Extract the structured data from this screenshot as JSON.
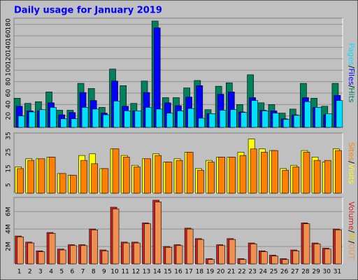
{
  "chart_data": [
    {
      "type": "bar",
      "title": "Daily usage for January 2019",
      "categories": [
        "1",
        "2",
        "3",
        "4",
        "5",
        "6",
        "7",
        "8",
        "9",
        "10",
        "11",
        "12",
        "13",
        "14",
        "15",
        "16",
        "17",
        "18",
        "19",
        "20",
        "21",
        "22",
        "23",
        "24",
        "25",
        "26",
        "27",
        "28",
        "29",
        "30",
        "31"
      ],
      "category_colors": [
        "#000000",
        "#000000",
        "#000000",
        "#000000",
        "#00805c",
        "#00805c",
        "#000000",
        "#000000",
        "#000000",
        "#000000",
        "#000000",
        "#00805c",
        "#00805c",
        "#000000",
        "#000000",
        "#000000",
        "#000000",
        "#000000",
        "#00805c",
        "#00805c",
        "#000000",
        "#000000",
        "#000000",
        "#000000",
        "#000000",
        "#00805c",
        "#00805c",
        "#000000",
        "#000000",
        "#000000",
        "#000000"
      ],
      "separator": "/",
      "series": [
        {
          "name": "Hits",
          "color": "#00805c",
          "values": [
            51,
            42,
            45,
            62,
            30,
            30,
            77,
            68,
            35,
            102,
            73,
            42,
            81,
            186,
            52,
            52,
            69,
            82,
            31,
            72,
            78,
            40,
            92,
            43,
            40,
            25,
            32,
            77,
            51,
            37,
            77
          ]
        },
        {
          "name": "Files",
          "color": "#0000ff",
          "values": [
            37,
            29,
            29,
            43,
            22,
            26,
            61,
            47,
            25,
            81,
            37,
            29,
            61,
            174,
            43,
            38,
            53,
            73,
            24,
            58,
            62,
            27,
            52,
            30,
            29,
            15,
            22,
            52,
            35,
            22,
            56
          ]
        },
        {
          "name": "Pages",
          "color": "#00e0ff",
          "values": [
            20,
            27,
            31,
            35,
            15,
            15,
            35,
            32,
            22,
            46,
            29,
            29,
            35,
            32,
            25,
            29,
            33,
            16,
            24,
            30,
            31,
            26,
            47,
            29,
            25,
            14,
            21,
            45,
            35,
            24,
            47
          ]
        }
      ],
      "ylim": [
        0,
        186
      ],
      "yticks": [
        20,
        40,
        60,
        80,
        100,
        120,
        140,
        160,
        180
      ],
      "grid": true
    },
    {
      "type": "bar",
      "series": [
        {
          "name": "Visits",
          "color": "#ffff00",
          "values": [
            16,
            21,
            21,
            22,
            12,
            11,
            23,
            24,
            15,
            27,
            23,
            17,
            21,
            24,
            19,
            21,
            25,
            15,
            20,
            22,
            22,
            25,
            33,
            27,
            26,
            15,
            17,
            26,
            22,
            19,
            27
          ]
        },
        {
          "name": "Sites",
          "color": "#ff8000",
          "values": [
            15,
            20,
            21,
            22,
            12,
            11,
            20,
            18,
            15,
            27,
            22,
            16,
            21,
            23,
            19,
            20,
            25,
            14,
            19,
            22,
            22,
            23,
            27,
            25,
            26,
            14,
            16,
            25,
            20,
            20,
            26
          ]
        }
      ],
      "ylim": [
        0,
        35
      ],
      "yticks": [
        5,
        15,
        25,
        35
      ],
      "grid": false
    },
    {
      "type": "bar",
      "legend_in": {
        "text": "IN",
        "color": "#e0c000"
      },
      "series": [
        {
          "name": "Volume",
          "color": "#d02020",
          "values": [
            3.2,
            2.5,
            1.5,
            3.6,
            1.7,
            2.2,
            2.2,
            4.0,
            1.6,
            6.5,
            2.5,
            2.5,
            4.7,
            7.3,
            2.0,
            2.2,
            4.1,
            2.9,
            0.6,
            2.2,
            2.9,
            0.6,
            2.4,
            1.5,
            1.0,
            0.6,
            1.6,
            4.7,
            2.4,
            1.8,
            4.0
          ]
        },
        {
          "name": "OUT",
          "color": "#f09050",
          "values": [
            3.1,
            2.4,
            1.4,
            3.5,
            1.6,
            2.1,
            2.1,
            3.9,
            1.5,
            6.3,
            2.4,
            2.4,
            4.6,
            7.1,
            1.9,
            2.1,
            4.0,
            2.8,
            0.5,
            2.1,
            2.8,
            0.5,
            2.3,
            1.4,
            0.9,
            0.5,
            1.5,
            4.6,
            2.3,
            1.7,
            3.9
          ]
        }
      ],
      "ylim": [
        0,
        7.3
      ],
      "yticks": [
        {
          "value": 2,
          "label": "2M"
        },
        {
          "value": 4,
          "label": "4M"
        },
        {
          "value": 6,
          "label": "6M"
        }
      ],
      "grid": true
    }
  ]
}
